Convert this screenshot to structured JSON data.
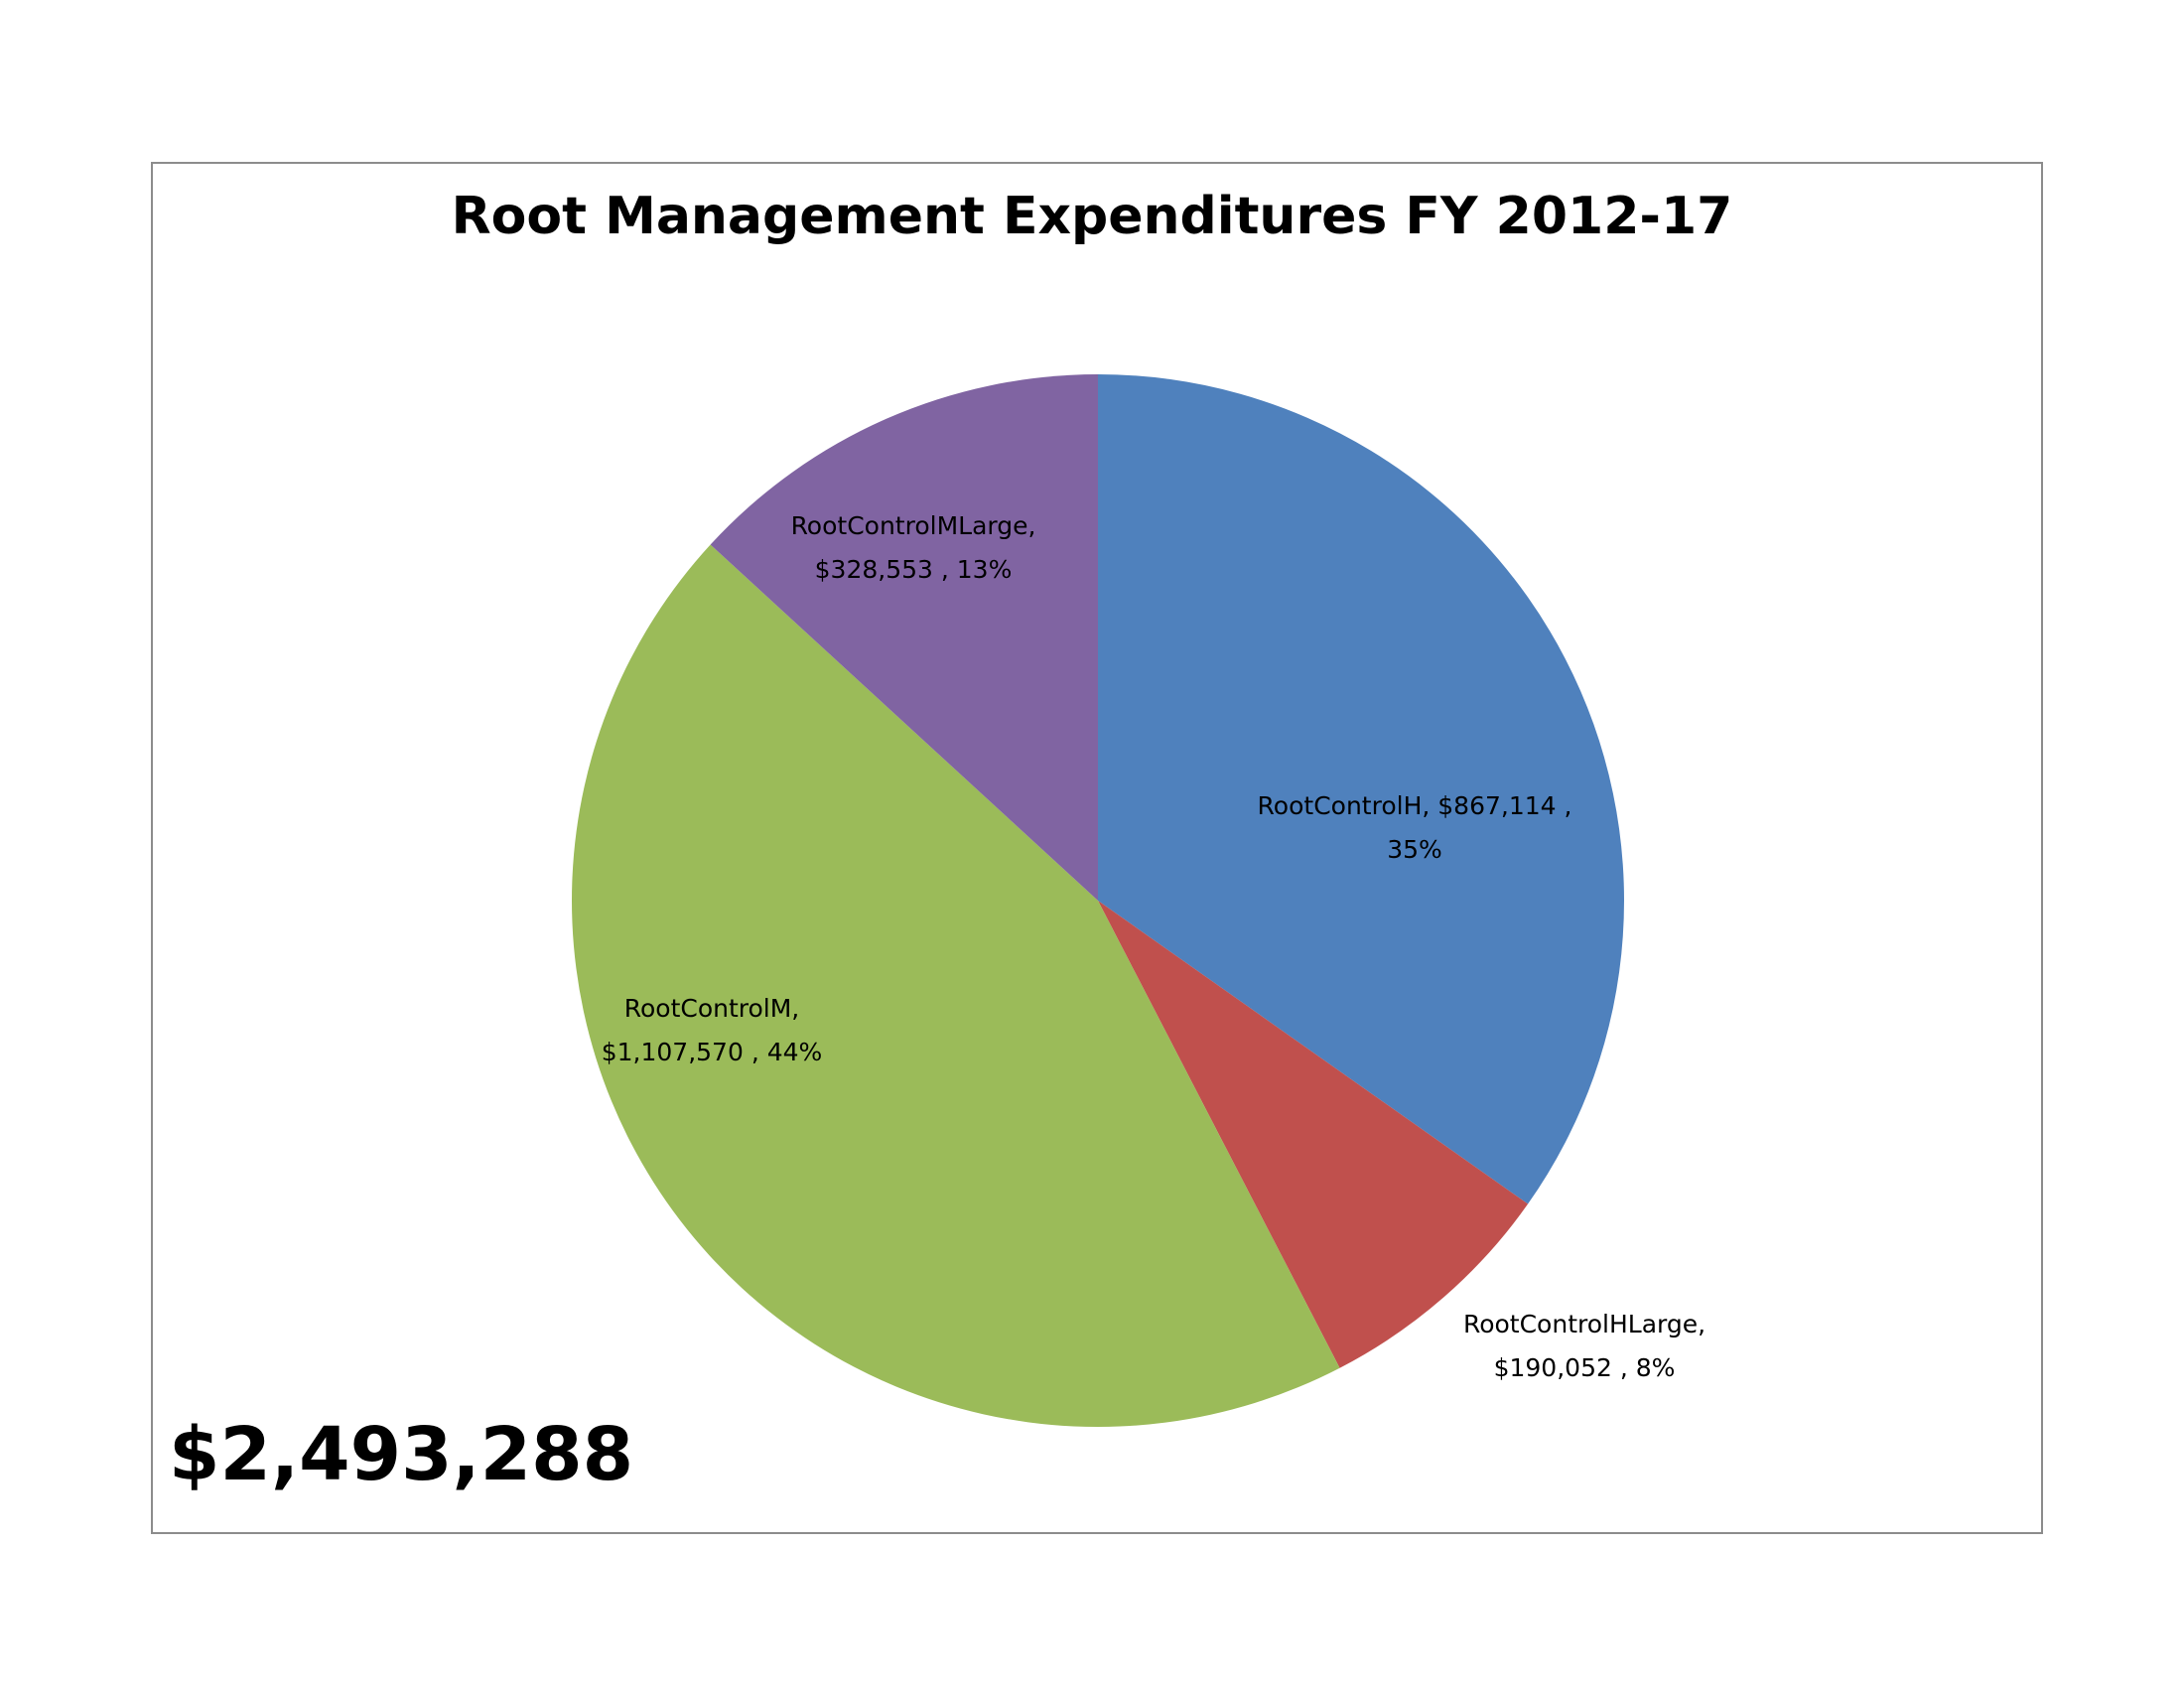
{
  "chart_data": {
    "type": "pie",
    "title": "Root Management Expenditures FY 2012-17",
    "total_label": "$2,493,288",
    "slices": [
      {
        "category": "RootControlH",
        "value": 867114,
        "percent": 35,
        "color": "#4f81bd",
        "label_lines": [
          "RootControlH,  $867,114 ,",
          "35%"
        ]
      },
      {
        "category": "RootControlHLarge",
        "value": 190052,
        "percent": 8,
        "color": "#c0504d",
        "label_lines": [
          "RootControlHLarge,",
          "$190,052 , 8%"
        ]
      },
      {
        "category": "RootControlM",
        "value": 1107570,
        "percent": 44,
        "color": "#9bbb59",
        "label_lines": [
          "RootControlM,",
          "$1,107,570 , 44%"
        ]
      },
      {
        "category": "RootControlMLarge",
        "value": 328553,
        "percent": 13,
        "color": "#8064a2",
        "label_lines": [
          "RootControlMLarge,",
          "$328,553 , 13%"
        ]
      }
    ]
  }
}
